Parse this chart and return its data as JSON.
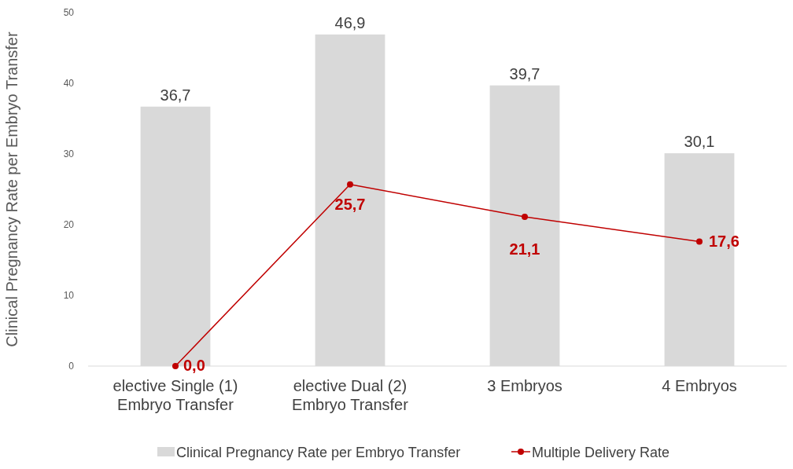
{
  "chart_data": {
    "type": "bar",
    "ylabel": "Clinical Pregnancy Rate per Embryo Transfer",
    "categories": [
      "elective Single (1)\nEmbryo Transfer",
      "elective Dual (2)\nEmbryo Transfer",
      "3 Embryos",
      "4 Embryos"
    ],
    "ylim": [
      0,
      50
    ],
    "yticks": [
      0,
      10,
      20,
      30,
      40,
      50
    ],
    "grid": false,
    "legend": "bottom",
    "marker": "circle",
    "line_style": "solid",
    "series": [
      {
        "name": "Clinical Pregnancy Rate per Embryo Transfer",
        "color": "#d9d9d9",
        "values": [
          36.7,
          46.9,
          39.7,
          30.1
        ],
        "value_labels": [
          "36,7",
          "46,9",
          "39,7",
          "30,1"
        ]
      },
      {
        "name": "Multiple Delivery Rate",
        "type": "line",
        "color": "#c00000",
        "values": [
          0.0,
          25.7,
          21.1,
          17.6
        ],
        "value_labels": [
          "0,0",
          "25,7",
          "21,1",
          "17,6"
        ]
      }
    ]
  }
}
